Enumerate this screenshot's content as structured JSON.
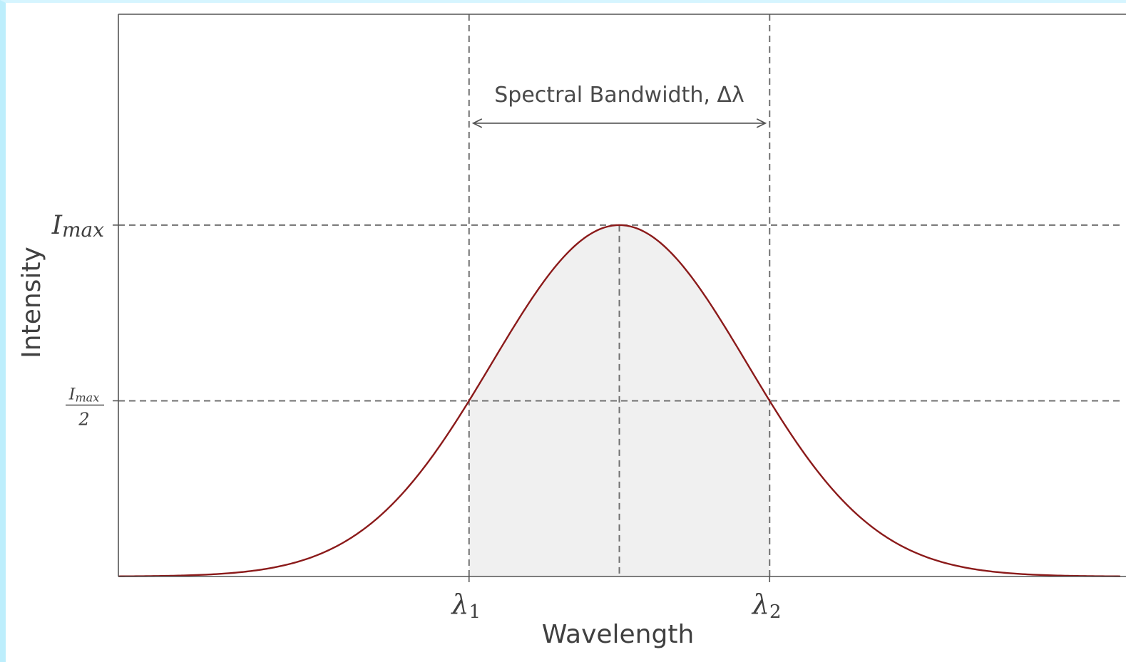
{
  "chart_data": {
    "type": "line",
    "title": "",
    "xlabel": "Wavelength",
    "ylabel": "Intensity",
    "xlim": [
      -5,
      5
    ],
    "ylim": [
      0,
      1.6
    ],
    "peak_x": 0,
    "sigma": 1.2741,
    "i_max": 1.0,
    "half_max": 0.5,
    "lambda1_x": -1.5,
    "lambda2_x": 1.5,
    "x_ticks": [
      {
        "x": -1.5,
        "base": "λ",
        "sub": "1"
      },
      {
        "x": 1.5,
        "base": "λ",
        "sub": "2"
      }
    ],
    "y_ticks": [
      {
        "y": 1.0,
        "base": "I",
        "sub": "max"
      },
      {
        "y": 0.5,
        "numerator_base": "I",
        "numerator_sub": "max",
        "denominator": "2"
      }
    ],
    "annotation": {
      "label": "Spectral Bandwidth, Δλ",
      "y": 1.29,
      "x_from": -1.5,
      "x_to": 1.5
    },
    "curve_color": "#8b1a1a",
    "fill_color": "#f0f0f0",
    "guide_color": "#707070",
    "grid": false,
    "legend": "none"
  }
}
